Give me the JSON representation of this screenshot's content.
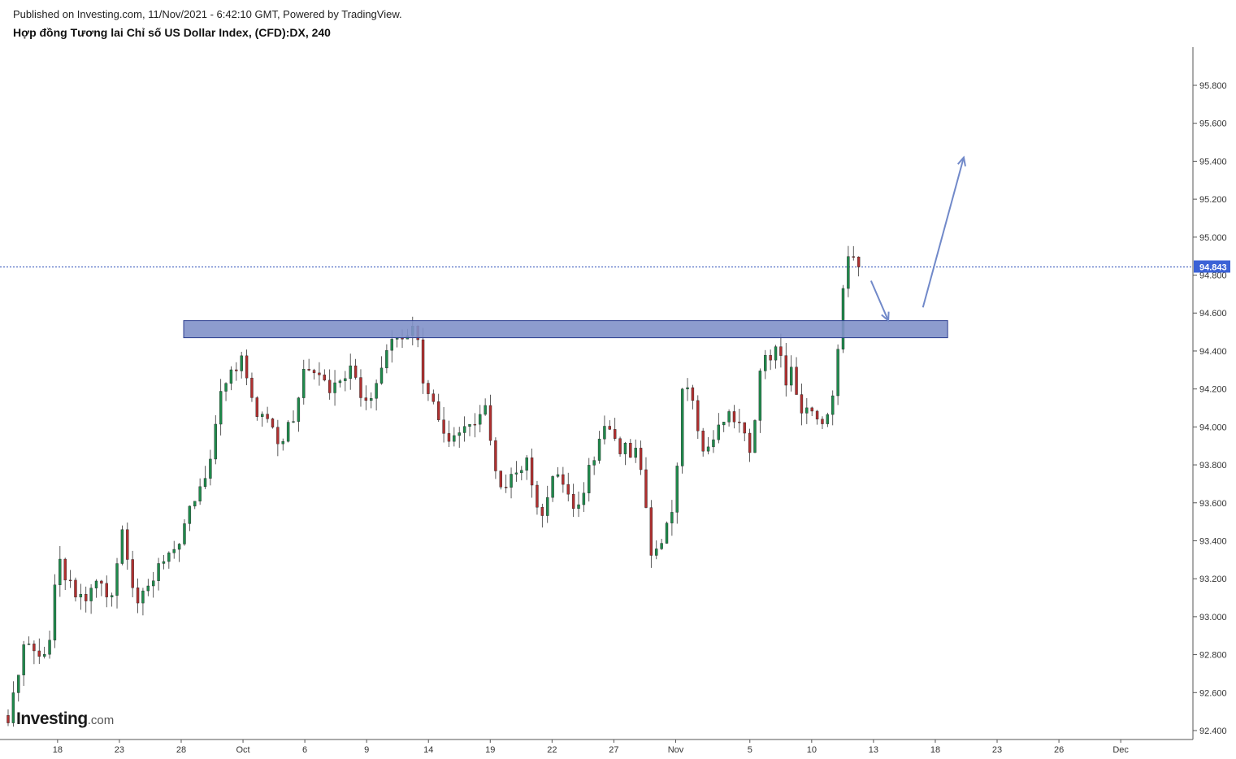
{
  "header": {
    "published": "Published on Investing.com, 11/Nov/2021 - 6:42:10 GMT, Powered by TradingView.",
    "title": "Hợp đồng Tương lai Chỉ số US Dollar Index, (CFD):DX, 240"
  },
  "logo": {
    "brand": "Investing",
    "suffix": ".com"
  },
  "colors": {
    "up": "#1f8a4c",
    "down": "#b03030",
    "zone": "#8191c9",
    "arrow": "#7189c9",
    "price_line": "#2a4db8",
    "price_badge": "#3b62d6"
  },
  "chart_data": {
    "type": "candlestick",
    "title": "",
    "timeframe": "240",
    "ylim": [
      92.4,
      95.9
    ],
    "xlim": [
      0,
      94
    ],
    "y_ticks": [
      "92.400",
      "92.600",
      "92.800",
      "93.000",
      "93.200",
      "93.400",
      "93.600",
      "93.800",
      "94.000",
      "94.200",
      "94.400",
      "94.600",
      "94.800",
      "95.000",
      "95.200",
      "95.400",
      "95.600",
      "95.800"
    ],
    "x_ticks": [
      {
        "label": "18",
        "x": 4
      },
      {
        "label": "23",
        "x": 9
      },
      {
        "label": "28",
        "x": 14
      },
      {
        "label": "Oct",
        "x": 19
      },
      {
        "label": "6",
        "x": 24
      },
      {
        "label": "9",
        "x": 29
      },
      {
        "label": "14",
        "x": 34
      },
      {
        "label": "19",
        "x": 39
      },
      {
        "label": "22",
        "x": 44
      },
      {
        "label": "27",
        "x": 49
      },
      {
        "label": "Nov",
        "x": 54
      },
      {
        "label": "5",
        "x": 60
      },
      {
        "label": "10",
        "x": 65
      },
      {
        "label": "13",
        "x": 70
      },
      {
        "label": "18",
        "x": 75
      },
      {
        "label": "23",
        "x": 80
      },
      {
        "label": "26",
        "x": 85
      },
      {
        "label": "Dec",
        "x": 90
      }
    ],
    "current_price": "94.843",
    "current_price_value": 94.843,
    "resistance_zone": {
      "x_start": 14.2,
      "x_end": 76,
      "low": 94.47,
      "high": 94.56
    },
    "arrows": [
      {
        "from": [
          69.8,
          94.77
        ],
        "to": [
          71.2,
          94.56
        ]
      },
      {
        "from": [
          74,
          94.63
        ],
        "to": [
          77.3,
          95.42
        ]
      }
    ],
    "anchors": [
      [
        0,
        92.48
      ],
      [
        1.5,
        92.9
      ],
      [
        3.2,
        92.78
      ],
      [
        4,
        93.3
      ],
      [
        5.5,
        93.1
      ],
      [
        6.5,
        93.12
      ],
      [
        7.5,
        93.2
      ],
      [
        8.3,
        93.05
      ],
      [
        9.3,
        93.45
      ],
      [
        10.3,
        93.06
      ],
      [
        11.3,
        93.15
      ],
      [
        12.3,
        93.3
      ],
      [
        13.5,
        93.35
      ],
      [
        14.5,
        93.55
      ],
      [
        15.5,
        93.7
      ],
      [
        16.5,
        93.85
      ],
      [
        17.3,
        94.25
      ],
      [
        18.3,
        94.3
      ],
      [
        19,
        94.35
      ],
      [
        20,
        94.1
      ],
      [
        21,
        94.05
      ],
      [
        22,
        93.88
      ],
      [
        23,
        94.05
      ],
      [
        24,
        94.3
      ],
      [
        25,
        94.28
      ],
      [
        26,
        94.2
      ],
      [
        27,
        94.25
      ],
      [
        28,
        94.3
      ],
      [
        28.7,
        94.15
      ],
      [
        29.5,
        94.15
      ],
      [
        30.3,
        94.3
      ],
      [
        31,
        94.45
      ],
      [
        32,
        94.42
      ],
      [
        33,
        94.52
      ],
      [
        33.5,
        94.25
      ],
      [
        34.5,
        94.08
      ],
      [
        35,
        94.05
      ],
      [
        35.5,
        93.95
      ],
      [
        36,
        93.93
      ],
      [
        37,
        94.05
      ],
      [
        38,
        94.05
      ],
      [
        38.5,
        94.15
      ],
      [
        39,
        93.95
      ],
      [
        39.5,
        93.75
      ],
      [
        40,
        93.65
      ],
      [
        41,
        93.78
      ],
      [
        42,
        93.82
      ],
      [
        42.5,
        93.6
      ],
      [
        43.5,
        93.55
      ],
      [
        44,
        93.78
      ],
      [
        45,
        93.7
      ],
      [
        46,
        93.55
      ],
      [
        47,
        93.8
      ],
      [
        48,
        93.95
      ],
      [
        48.5,
        94.0
      ],
      [
        49.3,
        93.9
      ],
      [
        50,
        93.88
      ],
      [
        51,
        93.85
      ],
      [
        52,
        93.35
      ],
      [
        53,
        93.4
      ],
      [
        54,
        93.6
      ],
      [
        54.3,
        94.15
      ],
      [
        55,
        94.2
      ],
      [
        55.5,
        94.1
      ],
      [
        56,
        93.88
      ],
      [
        57,
        93.9
      ],
      [
        58,
        94.05
      ],
      [
        59,
        94.05
      ],
      [
        60,
        93.9
      ],
      [
        60.5,
        94.1
      ],
      [
        61,
        94.35
      ],
      [
        62,
        94.4
      ],
      [
        62.5,
        94.35
      ],
      [
        63,
        94.22
      ],
      [
        63.5,
        94.3
      ],
      [
        64,
        94.08
      ],
      [
        65,
        94.05
      ],
      [
        66,
        94.0
      ],
      [
        66.5,
        94.1
      ],
      [
        67,
        94.3
      ],
      [
        67.3,
        94.55
      ],
      [
        67.8,
        94.85
      ],
      [
        68.4,
        94.9
      ],
      [
        68.8,
        94.84
      ]
    ],
    "candle_count": 165,
    "seed": 20211111
  }
}
